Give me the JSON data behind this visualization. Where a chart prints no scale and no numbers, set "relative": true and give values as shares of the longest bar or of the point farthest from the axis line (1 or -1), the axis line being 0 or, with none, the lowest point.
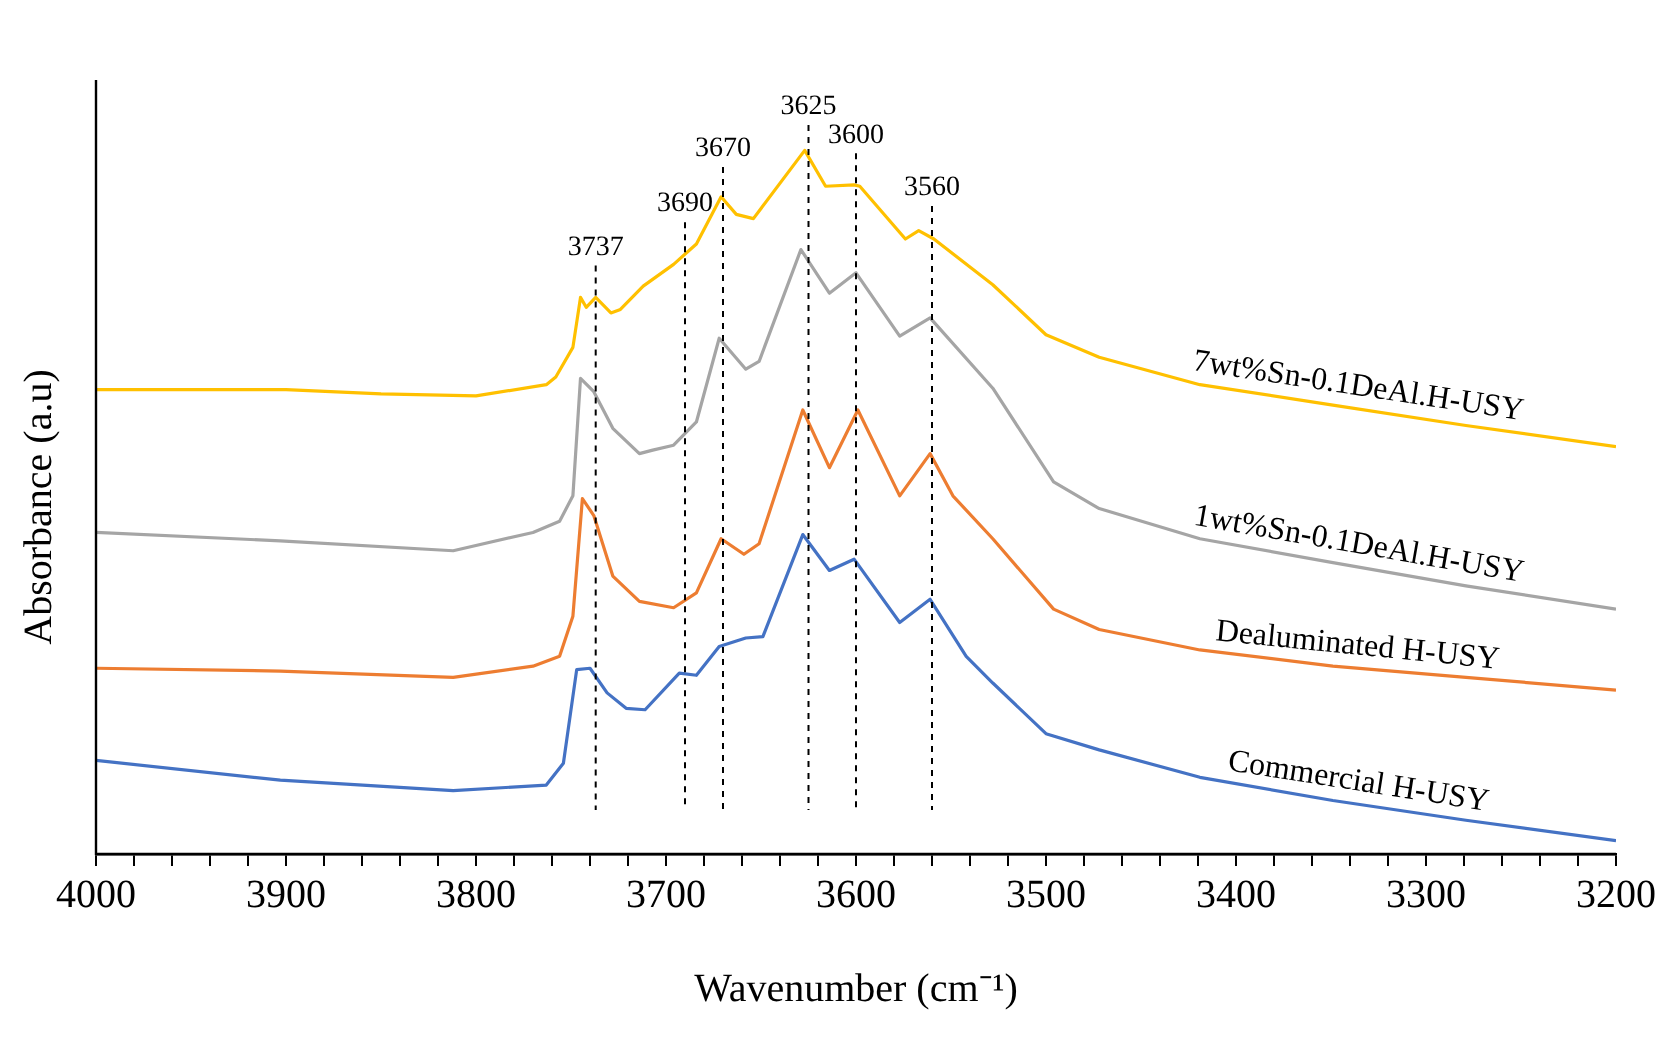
{
  "chart_data": {
    "type": "line",
    "xlabel": "Wavenumber (cm⁻¹)",
    "ylabel": "Absorbance (a.u)",
    "relative": true,
    "legend": false,
    "grid": false,
    "marker": "none",
    "line_style": "solid",
    "tick_labels": "x",
    "xlim": [
      4000,
      3200
    ],
    "xticks": [
      4000,
      {
        "value": 3980,
        "label": null
      },
      {
        "value": 3960,
        "label": null
      },
      {
        "value": 3940,
        "label": null
      },
      {
        "value": 3920,
        "label": null
      },
      3900,
      {
        "value": 3880,
        "label": null
      },
      {
        "value": 3860,
        "label": null
      },
      {
        "value": 3840,
        "label": null
      },
      {
        "value": 3820,
        "label": null
      },
      3800,
      {
        "value": 3780,
        "label": null
      },
      {
        "value": 3760,
        "label": null
      },
      {
        "value": 3740,
        "label": null
      },
      {
        "value": 3720,
        "label": null
      },
      3700,
      {
        "value": 3680,
        "label": null
      },
      {
        "value": 3660,
        "label": null
      },
      {
        "value": 3640,
        "label": null
      },
      {
        "value": 3620,
        "label": null
      },
      3600,
      {
        "value": 3580,
        "label": null
      },
      {
        "value": 3560,
        "label": null
      },
      {
        "value": 3540,
        "label": null
      },
      {
        "value": 3520,
        "label": null
      },
      3500,
      {
        "value": 3480,
        "label": null
      },
      {
        "value": 3460,
        "label": null
      },
      {
        "value": 3440,
        "label": null
      },
      {
        "value": 3420,
        "label": null
      },
      3400,
      {
        "value": 3380,
        "label": null
      },
      {
        "value": 3360,
        "label": null
      },
      {
        "value": 3340,
        "label": null
      },
      {
        "value": 3320,
        "label": null
      },
      3300,
      {
        "value": 3280,
        "label": null
      },
      {
        "value": 3260,
        "label": null
      },
      {
        "value": 3240,
        "label": null
      },
      {
        "value": 3220,
        "label": null
      },
      3200
    ],
    "series": [
      {
        "name": "7wt%Sn-0.1DeAl.H-USY",
        "color": "#ffc000",
        "x": [
          4000,
          3900,
          3850,
          3800,
          3763,
          3758,
          3749,
          3745,
          3742,
          3737,
          3729,
          3724,
          3712,
          3696,
          3684,
          3671,
          3663,
          3654,
          3627,
          3616,
          3601,
          3598,
          3574,
          3567,
          3559,
          3528,
          3500,
          3472,
          3419,
          3349,
          3279,
          3200
        ],
        "values": [
          0.66,
          0.66,
          0.654,
          0.651,
          0.667,
          0.678,
          0.72,
          0.791,
          0.777,
          0.791,
          0.769,
          0.774,
          0.807,
          0.838,
          0.867,
          0.934,
          0.909,
          0.903,
          1.0,
          0.949,
          0.951,
          0.949,
          0.874,
          0.886,
          0.874,
          0.809,
          0.738,
          0.706,
          0.667,
          0.638,
          0.609,
          0.579
        ]
      },
      {
        "name": "1wt%Sn-0.1DeAl.H-USY",
        "color": "#a5a5a5",
        "x": [
          4000,
          3903,
          3812,
          3770,
          3756,
          3749,
          3745,
          3738,
          3728,
          3714,
          3707,
          3696,
          3684,
          3672,
          3658,
          3651,
          3629,
          3614,
          3600,
          3577,
          3561,
          3528,
          3496,
          3472,
          3419,
          3349,
          3279,
          3200
        ],
        "values": [
          0.457,
          0.445,
          0.431,
          0.457,
          0.473,
          0.509,
          0.676,
          0.657,
          0.605,
          0.569,
          0.574,
          0.581,
          0.614,
          0.733,
          0.689,
          0.7,
          0.859,
          0.797,
          0.826,
          0.736,
          0.762,
          0.662,
          0.529,
          0.491,
          0.448,
          0.414,
          0.381,
          0.348
        ]
      },
      {
        "name": "Dealuminated H-USY",
        "color": "#ed7d31",
        "x": [
          4000,
          3903,
          3812,
          3770,
          3756,
          3749,
          3744,
          3738,
          3728,
          3714,
          3696,
          3684,
          3671,
          3659,
          3651,
          3628,
          3614,
          3599,
          3577,
          3561,
          3549,
          3528,
          3496,
          3472,
          3419,
          3349,
          3279,
          3200
        ],
        "values": [
          0.264,
          0.26,
          0.251,
          0.267,
          0.281,
          0.338,
          0.505,
          0.481,
          0.395,
          0.359,
          0.35,
          0.371,
          0.448,
          0.426,
          0.441,
          0.631,
          0.549,
          0.631,
          0.509,
          0.569,
          0.509,
          0.448,
          0.348,
          0.319,
          0.29,
          0.267,
          0.251,
          0.233
        ]
      },
      {
        "name": "Commercial H-USY",
        "color": "#4472c4",
        "x": [
          4000,
          3903,
          3812,
          3763,
          3754,
          3747,
          3740,
          3731,
          3721,
          3711,
          3693,
          3684,
          3672,
          3658,
          3649,
          3628,
          3614,
          3601,
          3577,
          3561,
          3542,
          3528,
          3500,
          3472,
          3419,
          3349,
          3279,
          3200
        ],
        "values": [
          0.133,
          0.105,
          0.09,
          0.098,
          0.129,
          0.262,
          0.264,
          0.229,
          0.207,
          0.205,
          0.257,
          0.254,
          0.295,
          0.307,
          0.309,
          0.454,
          0.403,
          0.419,
          0.329,
          0.362,
          0.281,
          0.243,
          0.171,
          0.148,
          0.109,
          0.076,
          0.048,
          0.019
        ]
      }
    ],
    "ref_lines": [
      {
        "axis": "x",
        "value": 3737,
        "label": "3737",
        "color": "#000000",
        "line_style": "dashed"
      },
      {
        "axis": "x",
        "value": 3690,
        "label": "3690",
        "color": "#000000",
        "line_style": "dashed"
      },
      {
        "axis": "x",
        "value": 3670,
        "label": "3670",
        "color": "#000000",
        "line_style": "dashed"
      },
      {
        "axis": "x",
        "value": 3625,
        "label": "3625",
        "color": "#000000",
        "line_style": "dashed"
      },
      {
        "axis": "x",
        "value": 3600,
        "label": "3600",
        "color": "#000000",
        "line_style": "dashed"
      },
      {
        "axis": "x",
        "value": 3560,
        "label": "3560",
        "color": "#000000",
        "line_style": "dashed"
      }
    ]
  }
}
